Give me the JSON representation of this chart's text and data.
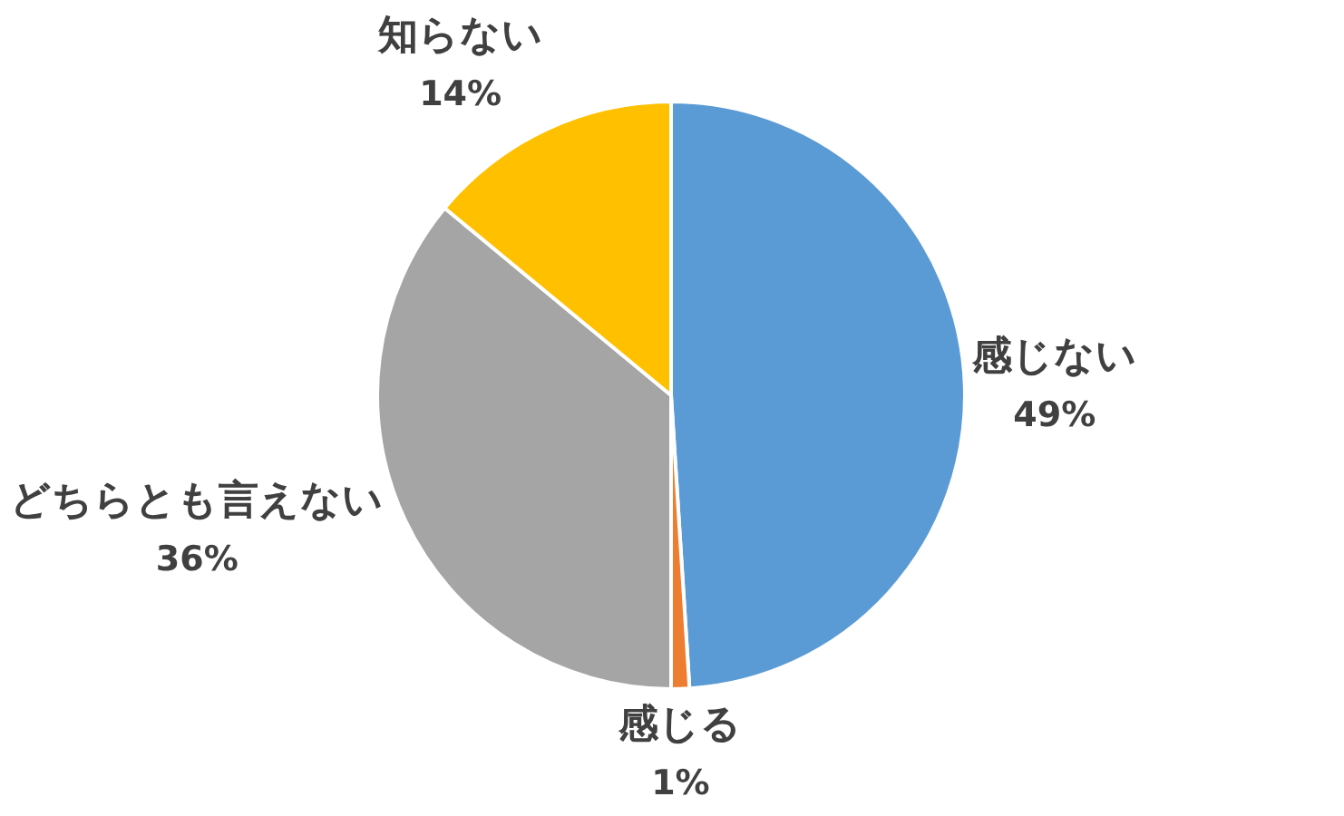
{
  "chart_data": {
    "type": "pie",
    "categories": [
      "感じない",
      "感じる",
      "どちらとも言えない",
      "知らない"
    ],
    "values": [
      49,
      1,
      36,
      14
    ],
    "colors": [
      "#5b9bd5",
      "#ed7d31",
      "#a5a5a5",
      "#ffc000"
    ],
    "value_labels": [
      "49%",
      "1%",
      "36%",
      "14%"
    ],
    "legend": false
  }
}
